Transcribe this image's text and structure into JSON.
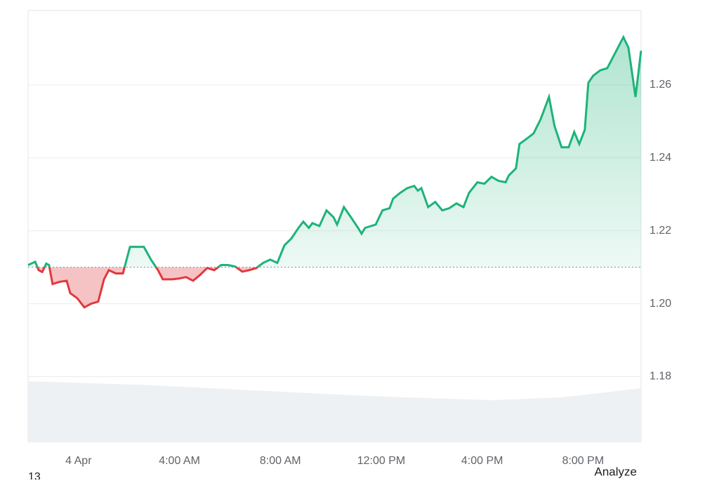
{
  "chart_data": {
    "type": "line",
    "x": [
      -2.0,
      -1.72,
      -1.58,
      -1.44,
      -1.28,
      -1.17,
      -1.03,
      -0.75,
      -0.47,
      -0.33,
      -0.05,
      0.23,
      0.5,
      0.78,
      1.01,
      1.2,
      1.48,
      1.76,
      2.04,
      2.31,
      2.59,
      2.87,
      3.15,
      3.34,
      3.71,
      3.98,
      4.26,
      4.54,
      4.82,
      5.1,
      5.38,
      5.65,
      5.93,
      6.21,
      6.49,
      6.77,
      7.05,
      7.32,
      7.6,
      7.88,
      8.16,
      8.44,
      8.72,
      8.91,
      9.13,
      9.27,
      9.55,
      9.83,
      10.11,
      10.25,
      10.52,
      10.8,
      11.08,
      11.22,
      11.36,
      11.78,
      12.05,
      12.33,
      12.47,
      12.75,
      13.03,
      13.31,
      13.45,
      13.59,
      13.86,
      14.14,
      14.42,
      14.7,
      14.98,
      15.26,
      15.48,
      15.81,
      16.09,
      16.37,
      16.65,
      16.93,
      17.06,
      17.34,
      17.48,
      17.76,
      18.04,
      18.32,
      18.65,
      18.87,
      19.15,
      19.43,
      19.65,
      19.85,
      20.07,
      20.21,
      20.4,
      20.68,
      20.96,
      21.24,
      21.6,
      21.8,
      22.08,
      22.3
    ],
    "series": [
      {
        "name": "price",
        "color": "#1db37a",
        "values": [
          1.2106,
          1.2115,
          1.2092,
          1.2087,
          1.211,
          1.2106,
          1.2054,
          1.206,
          1.2063,
          1.2029,
          1.2015,
          1.199,
          1.2,
          1.2006,
          1.2067,
          1.2092,
          1.2083,
          1.2083,
          1.2156,
          1.2156,
          1.2156,
          1.2121,
          1.2092,
          1.2067,
          1.2067,
          1.2069,
          1.2073,
          1.2063,
          1.2079,
          1.2098,
          1.2092,
          1.2106,
          1.2106,
          1.2102,
          1.2088,
          1.2092,
          1.2098,
          1.2112,
          1.2121,
          1.2112,
          1.216,
          1.2179,
          1.2208,
          1.2225,
          1.2208,
          1.2221,
          1.2213,
          1.2256,
          1.2237,
          1.2217,
          1.2265,
          1.2237,
          1.2208,
          1.2192,
          1.2208,
          1.2217,
          1.2256,
          1.2262,
          1.2288,
          1.2304,
          1.2317,
          1.2323,
          1.231,
          1.2317,
          1.2265,
          1.2279,
          1.2256,
          1.2262,
          1.2275,
          1.2265,
          1.2304,
          1.2333,
          1.2329,
          1.2348,
          1.2337,
          1.2333,
          1.2352,
          1.2371,
          1.2438,
          1.2452,
          1.2467,
          1.2506,
          1.2567,
          1.2487,
          1.2429,
          1.2429,
          1.2471,
          1.2438,
          1.2477,
          1.2606,
          1.2625,
          1.264,
          1.2646,
          1.2683,
          1.2731,
          1.2702,
          1.2567,
          1.2694
        ]
      }
    ],
    "baseline": 1.21,
    "below_color": "#e0393e",
    "xlim": [
      -2,
      22.3
    ],
    "xticks": [
      {
        "value": 0,
        "label": "4 Apr"
      },
      {
        "value": 4,
        "label": "4:00 AM"
      },
      {
        "value": 8,
        "label": "8:00 AM"
      },
      {
        "value": 12,
        "label": "12:00 PM"
      },
      {
        "value": 16,
        "label": "4:00 PM"
      },
      {
        "value": 20,
        "label": "8:00 PM"
      }
    ],
    "ylim": [
      1.162,
      1.2804
    ],
    "yticks": [
      {
        "value": 1.18,
        "label": "1.18"
      },
      {
        "value": 1.2,
        "label": "1.20"
      },
      {
        "value": 1.22,
        "label": "1.22"
      },
      {
        "value": 1.24,
        "label": "1.24"
      },
      {
        "value": 1.26,
        "label": "1.26"
      }
    ],
    "grid": true
  },
  "footer": {
    "left": "13",
    "button": "Analyze"
  }
}
